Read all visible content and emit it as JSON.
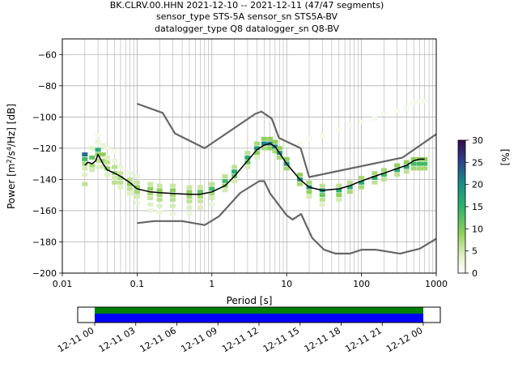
{
  "title_lines": [
    "BK.CLRV.00.HHN   2021-12-10 -- 2021-12-11  (47/47 segments)",
    "sensor_type STS-5A sensor_sn STS5A-BV",
    "datalogger_type Q8 datalogger_sn Q8-BV"
  ],
  "chart_data": [
    {
      "type": "heatmap",
      "subtype": "probabilistic power spectral density",
      "xlabel": "Period [s]",
      "ylabel_parts": {
        "pre": "Power [m",
        "sup1": "2",
        "mid": "/s",
        "sup2": "4",
        "post": "/Hz] [dB]"
      },
      "xscale": "log",
      "xlim": [
        0.01,
        1000
      ],
      "ylim": [
        -200,
        -50
      ],
      "x_ticks": [
        0.01,
        0.1,
        1,
        10,
        100,
        1000
      ],
      "x_tick_labels": [
        "0.01",
        "0.1",
        "1",
        "10",
        "100",
        "1000"
      ],
      "y_ticks": [
        -200,
        -180,
        -160,
        -140,
        -120,
        -100,
        -80,
        -60
      ],
      "y_tick_labels": [
        "−200",
        "−180",
        "−160",
        "−140",
        "−120",
        "−100",
        "−80",
        "−60"
      ],
      "grid": true,
      "colormap": [
        "#ffffff",
        "#c8e6a0",
        "#8fcf5a",
        "#2fb36a",
        "#1a8a88",
        "#2c3e8a",
        "#3b0a4a"
      ],
      "colorbar": {
        "label": "[%]",
        "range": [
          0,
          30
        ],
        "ticks": [
          0,
          5,
          10,
          15,
          20,
          25,
          30
        ]
      },
      "mean_curve": {
        "color": "#000000",
        "points": [
          [
            0.02,
            -131
          ],
          [
            0.022,
            -129
          ],
          [
            0.025,
            -130
          ],
          [
            0.028,
            -128
          ],
          [
            0.03,
            -124
          ],
          [
            0.035,
            -130
          ],
          [
            0.04,
            -134
          ],
          [
            0.05,
            -136
          ],
          [
            0.06,
            -138
          ],
          [
            0.08,
            -142
          ],
          [
            0.1,
            -146
          ],
          [
            0.15,
            -148
          ],
          [
            0.2,
            -148.5
          ],
          [
            0.3,
            -149
          ],
          [
            0.5,
            -149.5
          ],
          [
            0.7,
            -149.5
          ],
          [
            1,
            -148
          ],
          [
            1.5,
            -144
          ],
          [
            2,
            -138
          ],
          [
            3,
            -128
          ],
          [
            4,
            -121
          ],
          [
            5,
            -118
          ],
          [
            6,
            -117
          ],
          [
            7,
            -119
          ],
          [
            8,
            -123
          ],
          [
            10,
            -130
          ],
          [
            15,
            -140
          ],
          [
            20,
            -145
          ],
          [
            30,
            -147
          ],
          [
            50,
            -146
          ],
          [
            70,
            -144
          ],
          [
            100,
            -141
          ],
          [
            150,
            -138
          ],
          [
            200,
            -136
          ],
          [
            300,
            -133
          ],
          [
            400,
            -131
          ],
          [
            500,
            -128
          ],
          [
            600,
            -127
          ],
          [
            700,
            -127
          ]
        ]
      },
      "noise_models": {
        "color": "#666666",
        "high": [
          [
            0.1,
            -91.5
          ],
          [
            0.22,
            -97.4
          ],
          [
            0.32,
            -110.5
          ],
          [
            0.8,
            -120
          ],
          [
            3.8,
            -98
          ],
          [
            4.6,
            -96.5
          ],
          [
            6.3,
            -101
          ],
          [
            7.9,
            -113.5
          ],
          [
            15.4,
            -120
          ],
          [
            20,
            -138.5
          ],
          [
            354.8,
            -126
          ],
          [
            1000,
            -111
          ]
        ],
        "low": [
          [
            0.1,
            -168
          ],
          [
            0.17,
            -166.7
          ],
          [
            0.4,
            -166.7
          ],
          [
            0.8,
            -169.2
          ],
          [
            1.24,
            -163.7
          ],
          [
            2.4,
            -148.6
          ],
          [
            4.3,
            -141.1
          ],
          [
            5,
            -141.1
          ],
          [
            6,
            -149
          ],
          [
            10,
            -163
          ],
          [
            12,
            -165.7
          ],
          [
            15.6,
            -162.1
          ],
          [
            21.9,
            -177.5
          ],
          [
            31.6,
            -185
          ],
          [
            45,
            -187.5
          ],
          [
            70,
            -187.5
          ],
          [
            101,
            -185
          ],
          [
            154,
            -185
          ],
          [
            328,
            -187.5
          ],
          [
            600,
            -184.4
          ],
          [
            1000,
            -178
          ]
        ]
      },
      "density_cells": [
        [
          0.02,
          -124,
          22
        ],
        [
          0.02,
          -127,
          14
        ],
        [
          0.02,
          -130,
          8
        ],
        [
          0.02,
          -133,
          4
        ],
        [
          0.02,
          -137,
          3
        ],
        [
          0.02,
          -143,
          6
        ],
        [
          0.025,
          -126,
          12
        ],
        [
          0.025,
          -131,
          8
        ],
        [
          0.025,
          -134,
          4
        ],
        [
          0.025,
          -120,
          3
        ],
        [
          0.03,
          -121,
          16
        ],
        [
          0.03,
          -124,
          10
        ],
        [
          0.03,
          -128,
          6
        ],
        [
          0.03,
          -132,
          3
        ],
        [
          0.03,
          -116,
          2
        ],
        [
          0.03,
          -112,
          1
        ],
        [
          0.035,
          -124,
          10
        ],
        [
          0.035,
          -128,
          8
        ],
        [
          0.035,
          -132,
          4
        ],
        [
          0.035,
          -118,
          2
        ],
        [
          0.04,
          -129,
          6
        ],
        [
          0.04,
          -133,
          10
        ],
        [
          0.04,
          -126,
          3
        ],
        [
          0.04,
          -137,
          3
        ],
        [
          0.04,
          -120,
          2
        ],
        [
          0.05,
          -132,
          6
        ],
        [
          0.05,
          -136,
          8
        ],
        [
          0.05,
          -139,
          4
        ],
        [
          0.05,
          -142,
          6
        ],
        [
          0.05,
          -128,
          2
        ],
        [
          0.05,
          -122,
          1
        ],
        [
          0.06,
          -136,
          5
        ],
        [
          0.06,
          -139,
          8
        ],
        [
          0.06,
          -142,
          6
        ],
        [
          0.06,
          -145,
          3
        ],
        [
          0.06,
          -132,
          2
        ],
        [
          0.08,
          -140,
          6
        ],
        [
          0.08,
          -143,
          10
        ],
        [
          0.08,
          -146,
          6
        ],
        [
          0.08,
          -149,
          3
        ],
        [
          0.08,
          -136,
          2
        ],
        [
          0.1,
          -142,
          5
        ],
        [
          0.1,
          -145,
          10
        ],
        [
          0.1,
          -148,
          8
        ],
        [
          0.1,
          -151,
          4
        ],
        [
          0.1,
          -155,
          2
        ],
        [
          0.1,
          -138,
          2
        ],
        [
          0.15,
          -143,
          5
        ],
        [
          0.15,
          -146,
          10
        ],
        [
          0.15,
          -149,
          8
        ],
        [
          0.15,
          -152,
          5
        ],
        [
          0.15,
          -156,
          3
        ],
        [
          0.15,
          -160,
          2
        ],
        [
          0.2,
          -144,
          5
        ],
        [
          0.2,
          -147,
          10
        ],
        [
          0.2,
          -150,
          8
        ],
        [
          0.2,
          -153,
          6
        ],
        [
          0.2,
          -157,
          3
        ],
        [
          0.2,
          -161,
          2
        ],
        [
          0.3,
          -144,
          5
        ],
        [
          0.3,
          -147,
          10
        ],
        [
          0.3,
          -150,
          8
        ],
        [
          0.3,
          -153,
          6
        ],
        [
          0.3,
          -157,
          4
        ],
        [
          0.3,
          -162,
          2
        ],
        [
          0.5,
          -145,
          5
        ],
        [
          0.5,
          -148,
          10
        ],
        [
          0.5,
          -151,
          8
        ],
        [
          0.5,
          -154,
          6
        ],
        [
          0.5,
          -158,
          3
        ],
        [
          0.5,
          -162,
          2
        ],
        [
          0.7,
          -145,
          5
        ],
        [
          0.7,
          -148,
          12
        ],
        [
          0.7,
          -151,
          8
        ],
        [
          0.7,
          -154,
          5
        ],
        [
          0.7,
          -158,
          3
        ],
        [
          1,
          -143,
          6
        ],
        [
          1,
          -146,
          14
        ],
        [
          1,
          -149,
          8
        ],
        [
          1,
          -152,
          4
        ],
        [
          1,
          -156,
          2
        ],
        [
          1.5,
          -138,
          6
        ],
        [
          1.5,
          -141,
          14
        ],
        [
          1.5,
          -144,
          10
        ],
        [
          1.5,
          -147,
          4
        ],
        [
          2,
          -132,
          6
        ],
        [
          2,
          -135,
          16
        ],
        [
          2,
          -138,
          12
        ],
        [
          2,
          -141,
          4
        ],
        [
          3,
          -123,
          6
        ],
        [
          3,
          -126,
          16
        ],
        [
          3,
          -129,
          12
        ],
        [
          3,
          -132,
          4
        ],
        [
          4,
          -117,
          8
        ],
        [
          4,
          -120,
          18
        ],
        [
          4,
          -123,
          10
        ],
        [
          4,
          -126,
          3
        ],
        [
          5,
          -114,
          10
        ],
        [
          5,
          -117,
          20
        ],
        [
          5,
          -120,
          8
        ],
        [
          6,
          -114,
          10
        ],
        [
          6,
          -117,
          20
        ],
        [
          6,
          -120,
          10
        ],
        [
          7,
          -116,
          10
        ],
        [
          7,
          -119,
          20
        ],
        [
          7,
          -122,
          8
        ],
        [
          8,
          -120,
          10
        ],
        [
          8,
          -123,
          18
        ],
        [
          8,
          -126,
          8
        ],
        [
          10,
          -127,
          10
        ],
        [
          10,
          -130,
          18
        ],
        [
          10,
          -133,
          8
        ],
        [
          10,
          -118,
          1
        ],
        [
          15,
          -137,
          10
        ],
        [
          15,
          -140,
          18
        ],
        [
          15,
          -143,
          8
        ],
        [
          15,
          -117,
          1
        ],
        [
          20,
          -142,
          8
        ],
        [
          20,
          -145,
          18
        ],
        [
          20,
          -148,
          10
        ],
        [
          20,
          -151,
          4
        ],
        [
          20,
          -114,
          1
        ],
        [
          30,
          -144,
          6
        ],
        [
          30,
          -147,
          18
        ],
        [
          30,
          -150,
          12
        ],
        [
          30,
          -153,
          6
        ],
        [
          30,
          -156,
          3
        ],
        [
          30,
          -112,
          1
        ],
        [
          50,
          -144,
          6
        ],
        [
          50,
          -147,
          16
        ],
        [
          50,
          -150,
          10
        ],
        [
          50,
          -153,
          4
        ],
        [
          50,
          -108,
          1
        ],
        [
          70,
          -142,
          6
        ],
        [
          70,
          -145,
          16
        ],
        [
          70,
          -148,
          8
        ],
        [
          70,
          -105,
          1
        ],
        [
          100,
          -139,
          8
        ],
        [
          100,
          -142,
          16
        ],
        [
          100,
          -145,
          8
        ],
        [
          100,
          -103,
          1
        ],
        [
          150,
          -136,
          8
        ],
        [
          150,
          -139,
          16
        ],
        [
          150,
          -142,
          6
        ],
        [
          150,
          -101,
          1
        ],
        [
          200,
          -134,
          8
        ],
        [
          200,
          -137,
          14
        ],
        [
          200,
          -140,
          6
        ],
        [
          200,
          -98,
          1
        ],
        [
          300,
          -131,
          10
        ],
        [
          300,
          -134,
          16
        ],
        [
          300,
          -137,
          6
        ],
        [
          300,
          -96,
          1
        ],
        [
          400,
          -129,
          10
        ],
        [
          400,
          -132,
          16
        ],
        [
          400,
          -135,
          6
        ],
        [
          400,
          -94,
          1
        ],
        [
          500,
          -127,
          10
        ],
        [
          500,
          -130,
          14
        ],
        [
          500,
          -133,
          8
        ],
        [
          500,
          -91,
          1
        ],
        [
          600,
          -127,
          10
        ],
        [
          600,
          -130,
          14
        ],
        [
          600,
          -133,
          8
        ],
        [
          600,
          -90,
          1
        ],
        [
          700,
          -127,
          10
        ],
        [
          700,
          -130,
          14
        ],
        [
          700,
          -133,
          8
        ],
        [
          700,
          -90,
          1
        ]
      ]
    },
    {
      "type": "area",
      "subtype": "data coverage timeline",
      "x_tick_labels": [
        "12-11 00",
        "12-11 03",
        "12-11 06",
        "12-11 09",
        "12-11 12",
        "12-11 15",
        "12-11 18",
        "12-11 21",
        "12-12 00"
      ],
      "x_range_hours": [
        0,
        24
      ],
      "coverage_hours": [
        0,
        24
      ],
      "colors": {
        "processed": "#008000",
        "data": "#0000ff"
      }
    }
  ]
}
